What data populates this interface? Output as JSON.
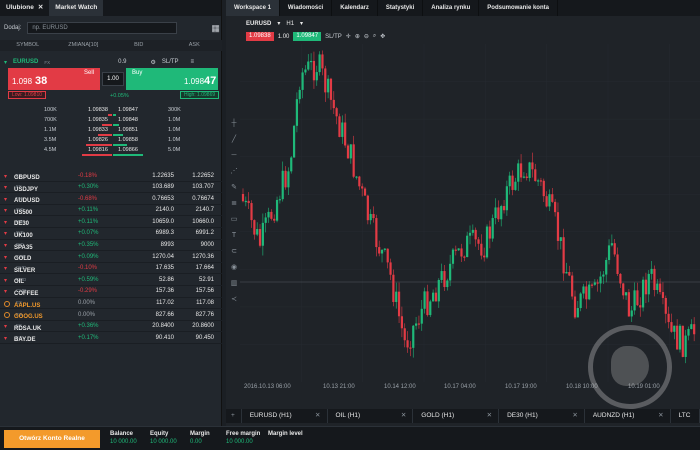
{
  "left": {
    "tabs": [
      "Ulubione",
      "Market Watch"
    ],
    "add_label": "Dodaj:",
    "search_placeholder": "np. EURUSD",
    "columns": [
      "SYMBOL",
      "ZMIANA[10]",
      "BID",
      "ASK"
    ],
    "instrument": {
      "symbol": "EURUSD",
      "type": "FX",
      "spread": "0.9",
      "sltp": "SL/TP",
      "sell_label": "Sell",
      "sell_price_main": "1.098",
      "sell_price_big": "38",
      "buy_label": "Buy",
      "buy_price_main": "1.098",
      "buy_price_big": "47",
      "qty": "1.00",
      "low": "Low: 1.09810",
      "high": "High: 1.09869",
      "change": "+0.05%"
    },
    "depth": [
      {
        "vol_l": "100K",
        "bid": "1.09838",
        "ask": "1.09847",
        "vol_r": "300K"
      },
      {
        "vol_l": "700K",
        "bid": "1.09835",
        "ask": "1.09848",
        "vol_r": "1.0M"
      },
      {
        "vol_l": "1.1M",
        "bid": "1.09833",
        "ask": "1.09851",
        "vol_r": "1.0M"
      },
      {
        "vol_l": "3.5M",
        "bid": "1.09826",
        "ask": "1.09858",
        "vol_r": "1.0M"
      },
      {
        "vol_l": "4.5M",
        "bid": "1.09816",
        "ask": "1.09866",
        "vol_r": "5.0M"
      }
    ],
    "watchlist": [
      {
        "sym": "GBPUSD",
        "type": "FX",
        "chg": "-0.18%",
        "dir": "neg",
        "bid": "1.22635",
        "ask": "1.22652",
        "icon": "chevron"
      },
      {
        "sym": "USDJPY",
        "type": "FX",
        "chg": "+0.30%",
        "dir": "pos",
        "bid": "103.689",
        "ask": "103.707",
        "icon": "chevron"
      },
      {
        "sym": "AUDUSD",
        "type": "FX",
        "chg": "-0.68%",
        "dir": "neg",
        "bid": "0.76653",
        "ask": "0.76674",
        "icon": "chevron"
      },
      {
        "sym": "US500",
        "type": "IND",
        "chg": "+0.11%",
        "dir": "pos",
        "bid": "2140.0",
        "ask": "2140.7",
        "icon": "chevron"
      },
      {
        "sym": "DE30",
        "type": "IND",
        "chg": "+0.11%",
        "dir": "pos",
        "bid": "10659.0",
        "ask": "10660.0",
        "icon": "chevron"
      },
      {
        "sym": "UK100",
        "type": "IND",
        "chg": "+0.07%",
        "dir": "pos",
        "bid": "6989.3",
        "ask": "6991.2",
        "icon": "chevron"
      },
      {
        "sym": "SPA35",
        "type": "IND",
        "chg": "+0.35%",
        "dir": "pos",
        "bid": "8993",
        "ask": "9000",
        "icon": "chevron"
      },
      {
        "sym": "GOLD",
        "type": "CMD",
        "chg": "+0.09%",
        "dir": "pos",
        "bid": "1270.04",
        "ask": "1270.36",
        "icon": "chevron"
      },
      {
        "sym": "SILVER",
        "type": "CMD",
        "chg": "-0.10%",
        "dir": "neg",
        "bid": "17.635",
        "ask": "17.664",
        "icon": "chevron"
      },
      {
        "sym": "OIL",
        "type": "CMD",
        "chg": "+0.59%",
        "dir": "pos",
        "bid": "52.86",
        "ask": "52.91",
        "icon": "chevron"
      },
      {
        "sym": "COFFEE",
        "type": "CMD",
        "chg": "-0.29%",
        "dir": "neg",
        "bid": "157.36",
        "ask": "157.56",
        "icon": "chevron"
      },
      {
        "sym": "AAPL.US",
        "type": "ES",
        "chg": "0.00%",
        "dir": "neu",
        "bid": "117.02",
        "ask": "117.08",
        "icon": "circle"
      },
      {
        "sym": "GOOG.US",
        "type": "ES",
        "chg": "0.00%",
        "dir": "neu",
        "bid": "827.66",
        "ask": "827.76",
        "icon": "circle"
      },
      {
        "sym": "RDSA.UK",
        "type": "ES",
        "chg": "+0.36%",
        "dir": "pos",
        "bid": "20.8400",
        "ask": "20.8600",
        "icon": "chevron"
      },
      {
        "sym": "BAY.DE",
        "type": "ES",
        "chg": "+0.17%",
        "dir": "pos",
        "bid": "90.410",
        "ask": "90.450",
        "icon": "chevron"
      }
    ]
  },
  "right": {
    "tabs": [
      "Workspace 1",
      "Wiadomości",
      "Kalendarz",
      "Statystyki",
      "Analiza rynku",
      "Podsumowanie konta"
    ],
    "chart_symbol": "EURUSD",
    "timeframe": "H1",
    "sell_price": "1.09838",
    "lot": "1.00",
    "buy_price": "1.09847",
    "sltp": "SL/TP",
    "x_labels": [
      "2016.10.13 06:00",
      "10.13 21:00",
      "10.14 12:00",
      "10.17 04:00",
      "10.17 19:00",
      "10.18 10:00",
      "10.19 01:00"
    ],
    "bottom_tabs": [
      "EURUSD (H1)",
      "OIL (H1)",
      "GOLD (H1)",
      "DE30 (H1)",
      "AUDNZD (H1)",
      "LTC"
    ]
  },
  "footer": {
    "open_account": "Otwórz Konto Realne",
    "cells": [
      {
        "k": "Balance",
        "v": "10 000.00"
      },
      {
        "k": "Equity",
        "v": "10 000.00"
      },
      {
        "k": "Margin",
        "v": "0.00"
      },
      {
        "k": "Free margin",
        "v": "10 000.00"
      },
      {
        "k": "Margin level",
        "v": ""
      }
    ]
  },
  "colors": {
    "up": "#1fb979",
    "down": "#e23b45",
    "accent": "#f39a2b"
  }
}
